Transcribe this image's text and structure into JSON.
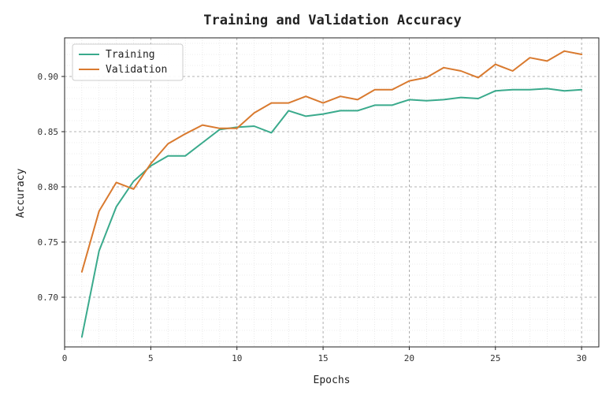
{
  "chart_data": {
    "type": "line",
    "title": "Training and Validation Accuracy",
    "xlabel": "Epochs",
    "ylabel": "Accuracy",
    "xlim": [
      0,
      31
    ],
    "ylim": [
      0.655,
      0.935
    ],
    "xticks": [
      0,
      5,
      10,
      15,
      20,
      25,
      30
    ],
    "yticks": [
      0.7,
      0.75,
      0.8,
      0.85,
      0.9
    ],
    "grid": true,
    "legend_position": "top-left",
    "x": [
      1,
      2,
      3,
      4,
      5,
      6,
      7,
      8,
      9,
      10,
      11,
      12,
      13,
      14,
      15,
      16,
      17,
      18,
      19,
      20,
      21,
      22,
      23,
      24,
      25,
      26,
      27,
      28,
      29,
      30
    ],
    "series": [
      {
        "name": "Training",
        "color": "#3aaa8c",
        "values": [
          0.664,
          0.742,
          0.782,
          0.805,
          0.819,
          0.828,
          0.828,
          0.84,
          0.852,
          0.854,
          0.855,
          0.849,
          0.869,
          0.864,
          0.866,
          0.869,
          0.869,
          0.874,
          0.874,
          0.879,
          0.878,
          0.879,
          0.881,
          0.88,
          0.887,
          0.888,
          0.888,
          0.889,
          0.887,
          0.888
        ]
      },
      {
        "name": "Validation",
        "color": "#d97a2f",
        "values": [
          0.723,
          0.778,
          0.804,
          0.798,
          0.821,
          0.839,
          0.848,
          0.856,
          0.853,
          0.853,
          0.867,
          0.876,
          0.876,
          0.882,
          0.876,
          0.882,
          0.879,
          0.888,
          0.888,
          0.896,
          0.899,
          0.908,
          0.905,
          0.899,
          0.911,
          0.905,
          0.917,
          0.914,
          0.923,
          0.92
        ]
      }
    ]
  }
}
